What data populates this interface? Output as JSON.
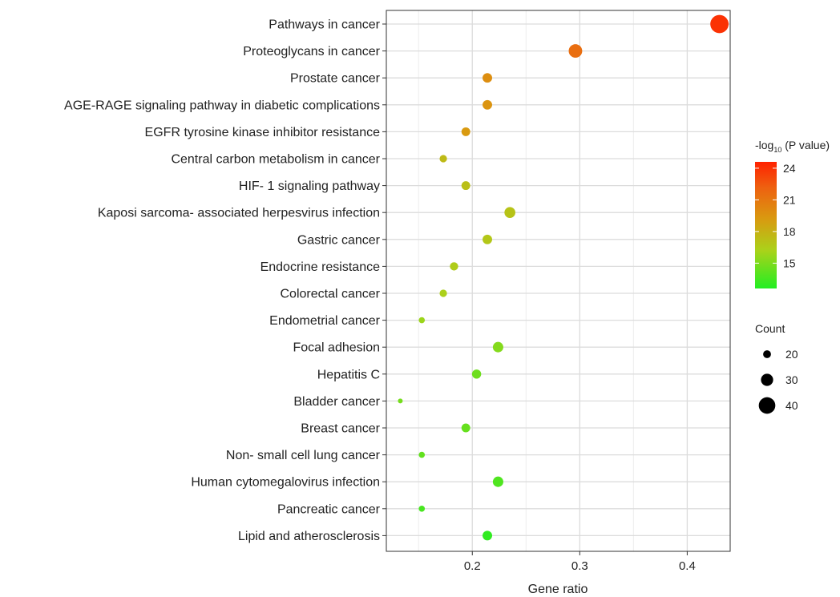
{
  "chart_data": {
    "type": "scatter",
    "xlabel": "Gene ratio",
    "ylabel": "",
    "xlim": [
      0.12,
      0.44
    ],
    "x_ticks": [
      0.2,
      0.3,
      0.4
    ],
    "x_tick_labels": [
      "0.2",
      "0.3",
      "0.4"
    ],
    "grid": true,
    "categories": [
      "Pathways in cancer",
      "Proteoglycans in cancer",
      "Prostate cancer",
      "AGE-RAGE signaling pathway in diabetic complications",
      "EGFR tyrosine kinase inhibitor resistance",
      "Central carbon metabolism in cancer",
      "HIF- 1 signaling pathway",
      "Kaposi sarcoma- associated herpesvirus infection",
      "Gastric cancer",
      "Endocrine resistance",
      "Colorectal cancer",
      "Endometrial cancer",
      "Focal adhesion",
      "Hepatitis C",
      "Bladder cancer",
      "Breast cancer",
      "Non- small cell lung cancer",
      "Human cytomegalovirus infection",
      "Pancreatic cancer",
      "Lipid and atherosclerosis"
    ],
    "points": [
      {
        "term": "Pathways in cancer",
        "gene_ratio": 0.43,
        "count": 44,
        "neg_log10_p": 24.0
      },
      {
        "term": "Proteoglycans in cancer",
        "gene_ratio": 0.296,
        "count": 33,
        "neg_log10_p": 21.5
      },
      {
        "term": "Prostate cancer",
        "gene_ratio": 0.214,
        "count": 24,
        "neg_log10_p": 19.8
      },
      {
        "term": "AGE-RAGE signaling pathway in diabetic complications",
        "gene_ratio": 0.214,
        "count": 24,
        "neg_log10_p": 19.5
      },
      {
        "term": "EGFR tyrosine kinase inhibitor resistance",
        "gene_ratio": 0.194,
        "count": 22,
        "neg_log10_p": 19.2
      },
      {
        "term": "Central carbon metabolism in cancer",
        "gene_ratio": 0.173,
        "count": 19,
        "neg_log10_p": 17.5
      },
      {
        "term": "HIF- 1 signaling pathway",
        "gene_ratio": 0.194,
        "count": 22,
        "neg_log10_p": 17.2
      },
      {
        "term": "Kaposi sarcoma- associated herpesvirus infection",
        "gene_ratio": 0.235,
        "count": 27,
        "neg_log10_p": 17.0
      },
      {
        "term": "Gastric cancer",
        "gene_ratio": 0.214,
        "count": 24,
        "neg_log10_p": 16.8
      },
      {
        "term": "Endocrine resistance",
        "gene_ratio": 0.183,
        "count": 21,
        "neg_log10_p": 16.5
      },
      {
        "term": "Colorectal cancer",
        "gene_ratio": 0.173,
        "count": 19,
        "neg_log10_p": 16.3
      },
      {
        "term": "Endometrial cancer",
        "gene_ratio": 0.153,
        "count": 16,
        "neg_log10_p": 15.8
      },
      {
        "term": "Focal adhesion",
        "gene_ratio": 0.224,
        "count": 26,
        "neg_log10_p": 15.2
      },
      {
        "term": "Hepatitis C",
        "gene_ratio": 0.204,
        "count": 23,
        "neg_log10_p": 14.6
      },
      {
        "term": "Bladder cancer",
        "gene_ratio": 0.133,
        "count": 13,
        "neg_log10_p": 14.8
      },
      {
        "term": "Breast cancer",
        "gene_ratio": 0.194,
        "count": 22,
        "neg_log10_p": 14.4
      },
      {
        "term": "Non- small cell lung cancer",
        "gene_ratio": 0.153,
        "count": 16,
        "neg_log10_p": 14.3
      },
      {
        "term": "Human cytomegalovirus infection",
        "gene_ratio": 0.224,
        "count": 26,
        "neg_log10_p": 13.8
      },
      {
        "term": "Pancreatic cancer",
        "gene_ratio": 0.153,
        "count": 16,
        "neg_log10_p": 13.6
      },
      {
        "term": "Lipid and atherosclerosis",
        "gene_ratio": 0.214,
        "count": 24,
        "neg_log10_p": 13.0
      }
    ],
    "color_legend": {
      "title_prefix": "-log",
      "title_sub": "10",
      "title_suffix": " (P value)",
      "min": 12.6,
      "max": 24.6,
      "ticks": [
        24,
        21,
        18,
        15
      ],
      "tick_labels": [
        "24",
        "21",
        "18",
        "15"
      ],
      "colors": [
        "#22ee22",
        "#aad21a",
        "#d99a10",
        "#ee6010",
        "#ff2200"
      ]
    },
    "size_legend": {
      "title": "Count",
      "values": [
        20,
        30,
        40
      ],
      "labels": [
        "20",
        "30",
        "40"
      ]
    }
  }
}
